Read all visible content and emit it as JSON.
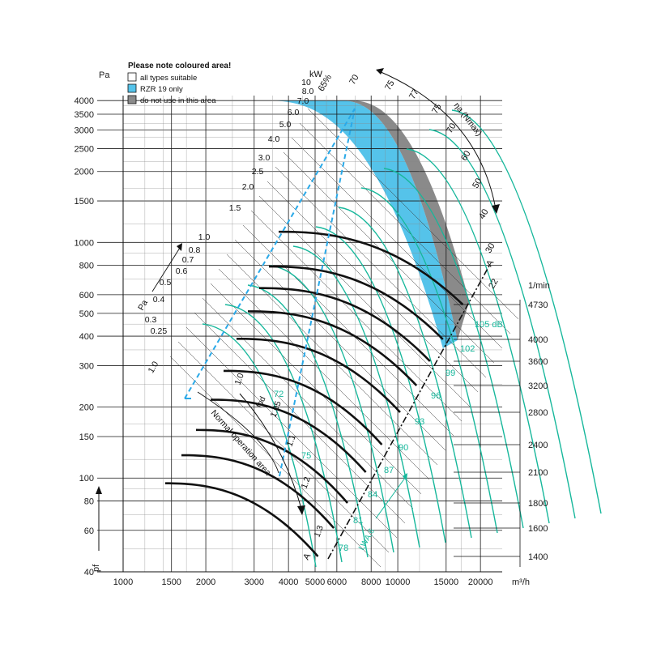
{
  "chart_data": {
    "type": "fan-performance-curve",
    "x_axis": {
      "unit": "m³/h",
      "scale": "log",
      "range": [
        1000,
        24000
      ],
      "ticks": [
        1000,
        1500,
        2000,
        3000,
        4000,
        5000,
        6000,
        8000,
        10000,
        15000,
        20000
      ]
    },
    "y_axis": {
      "unit": "Pa",
      "label": "pf",
      "scale": "log",
      "range": [
        40,
        4200
      ],
      "ticks": [
        40,
        60,
        80,
        100,
        150,
        200,
        300,
        400,
        500,
        600,
        800,
        1000,
        1500,
        2000,
        2500,
        3000,
        3500,
        4000
      ]
    },
    "speed_axis": {
      "unit": "1/min",
      "ticks": [
        4730,
        4000,
        3600,
        3200,
        2800,
        2400,
        2100,
        1800,
        1600,
        1400
      ]
    },
    "legend": {
      "title": "Please note coloured area!",
      "items": [
        {
          "label": "all types suitable",
          "color": "#ffffff"
        },
        {
          "label": "RZR 19 only",
          "color": "#55c3ea"
        },
        {
          "label": "do not use in this area",
          "color": "#8a8a8a"
        }
      ]
    },
    "speed_curves_rpm": [
      1400,
      1600,
      1800,
      2100,
      2400,
      2800,
      3200,
      3600,
      4000,
      4730
    ],
    "speed_curve_peak_pa": [
      95,
      125,
      160,
      215,
      285,
      390,
      510,
      640,
      790,
      1110
    ],
    "speed_curve_endpoint_m3h": [
      5120,
      5850,
      6560,
      7650,
      8750,
      10200,
      11700,
      13100,
      14600,
      17250
    ],
    "power_scale": {
      "label": "kW",
      "values": [
        "1.0",
        "0.25",
        "0.3",
        "0.4",
        "0.5",
        "0.6",
        "0.7",
        "0.8",
        "1.0",
        "1.5",
        "2.0",
        "2.5",
        "3.0",
        "4.0",
        "5.0",
        "6.0",
        "7.0",
        "8.0",
        "10"
      ]
    },
    "pa_label": "Pa",
    "efficiency_scale": {
      "label": "ηa (Nmax)",
      "values": [
        "65%",
        "70",
        "75",
        "77",
        "75",
        "70",
        "60",
        "50",
        "40",
        "30",
        "22"
      ]
    },
    "noise_scale": {
      "label": "LWA,6",
      "values": [
        "78",
        "81",
        "84",
        "87",
        "90",
        "93",
        "96",
        "99",
        "102",
        "105 dB"
      ]
    },
    "pd_scale": {
      "label": "fpd",
      "values": [
        "1.0",
        "1.05",
        "1.1",
        "1.2",
        "1.3"
      ]
    },
    "mid_labels": [
      "72",
      "75"
    ],
    "normal_operation_label": "Normal operation area",
    "line_label": "A",
    "colors": {
      "speed_curve": "#111111",
      "efficiency_curve": "#16b79b",
      "noise_text": "#16b79b",
      "zone_rzr19": "#55c3ea",
      "zone_no_use": "#8a8a8a",
      "dashed_line": "#2aa9e8"
    }
  }
}
